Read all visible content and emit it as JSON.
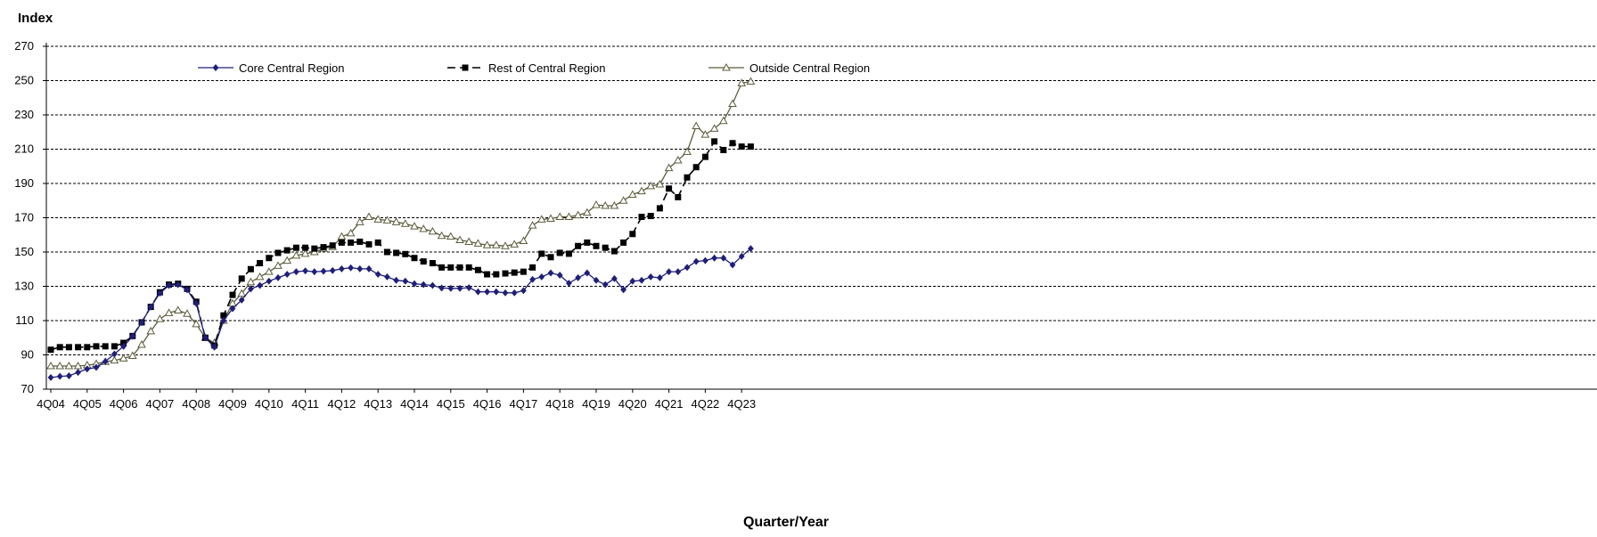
{
  "chart_data": {
    "type": "line",
    "ylabel": "Index",
    "xlabel": "Quarter/Year",
    "ylim": [
      70,
      270
    ],
    "y_ticks": [
      70,
      90,
      110,
      130,
      150,
      170,
      190,
      210,
      230,
      250,
      270
    ],
    "x_tick_labels": [
      "4Q04",
      "4Q05",
      "4Q06",
      "4Q07",
      "4Q08",
      "4Q09",
      "4Q10",
      "4Q11",
      "4Q12",
      "4Q13",
      "4Q14",
      "4Q15",
      "4Q16",
      "4Q17",
      "4Q18",
      "4Q19",
      "4Q20",
      "4Q21",
      "4Q22",
      "4Q23"
    ],
    "grid": "horizontal dashed",
    "legend_position": "top-left inside",
    "x_start": "4Q04",
    "series": [
      {
        "name": "Core Central Region",
        "color": "#1f1f7a",
        "marker": "diamond",
        "dash": "solid",
        "values": [
          76.8,
          77.5,
          77.8,
          79.8,
          81.8,
          82.7,
          86.2,
          90.5,
          95.0,
          100.8,
          108.9,
          118.0,
          126.0,
          130.5,
          131.0,
          128.0,
          120.0,
          100.0,
          94.5,
          110.0,
          117.0,
          122.0,
          128.5,
          130.5,
          133.0,
          135.0,
          137.0,
          138.5,
          139.0,
          138.5,
          138.8,
          139.2,
          140.2,
          140.8,
          140.2,
          140.2,
          137.0,
          135.5,
          133.5,
          133.0,
          131.5,
          131.0,
          130.5,
          129.0,
          128.8,
          128.8,
          129.2,
          126.8,
          126.8,
          126.8,
          126.2,
          126.2,
          127.5,
          134.0,
          135.5,
          137.8,
          136.5,
          131.8,
          135.0,
          137.8,
          133.5,
          131.0,
          134.5,
          128.0,
          133.0,
          133.5,
          135.5,
          135.0,
          138.5,
          138.5,
          141.0,
          144.5,
          145.0,
          146.5,
          146.5,
          142.5,
          147.5,
          152.0
        ]
      },
      {
        "name": "Rest of Central Region",
        "color": "#000000",
        "marker": "square",
        "dash": "dashed",
        "values": [
          93.0,
          94.5,
          94.5,
          94.5,
          94.5,
          95.0,
          95.0,
          95.0,
          97.0,
          101.0,
          109.0,
          118.0,
          126.5,
          131.0,
          131.5,
          128.5,
          121.0,
          100.0,
          95.5,
          113.0,
          125.0,
          134.5,
          140.0,
          143.5,
          146.5,
          149.5,
          151.0,
          152.5,
          152.5,
          152.0,
          152.8,
          153.8,
          155.5,
          155.5,
          156.0,
          154.5,
          155.5,
          150.0,
          149.5,
          148.8,
          146.5,
          144.5,
          143.5,
          141.0,
          141.0,
          141.0,
          141.0,
          139.5,
          137.0,
          137.0,
          137.5,
          138.0,
          138.5,
          141.0,
          149.0,
          147.0,
          149.5,
          149.0,
          153.5,
          155.5,
          153.5,
          152.5,
          150.5,
          155.5,
          160.5,
          170.5,
          171.0,
          175.5,
          187.0,
          182.0,
          193.5,
          199.5,
          205.5,
          214.5,
          209.5,
          213.5,
          211.5,
          211.5
        ]
      },
      {
        "name": "Outside Central Region",
        "color": "#5c5c3c",
        "marker": "triangle",
        "dash": "solid",
        "values": [
          83.5,
          83.5,
          83.5,
          83.5,
          84.0,
          84.8,
          86.0,
          86.8,
          88.0,
          89.5,
          96.0,
          103.8,
          111.0,
          114.5,
          116.0,
          114.0,
          108.0,
          100.0,
          97.0,
          110.0,
          120.0,
          125.8,
          132.5,
          135.5,
          138.5,
          142.0,
          145.0,
          148.0,
          149.0,
          150.0,
          152.0,
          153.0,
          159.0,
          161.0,
          167.5,
          170.5,
          169.0,
          168.5,
          167.5,
          166.5,
          165.0,
          163.5,
          162.0,
          159.5,
          159.0,
          157.0,
          156.0,
          155.0,
          154.0,
          154.0,
          153.5,
          154.5,
          156.5,
          165.5,
          169.0,
          169.5,
          170.5,
          170.5,
          171.5,
          173.0,
          177.5,
          177.0,
          177.0,
          180.0,
          183.5,
          185.5,
          188.5,
          189.5,
          199.0,
          203.5,
          208.5,
          223.5,
          218.5,
          222.0,
          226.5,
          236.5,
          248.5,
          249.5
        ]
      }
    ]
  }
}
